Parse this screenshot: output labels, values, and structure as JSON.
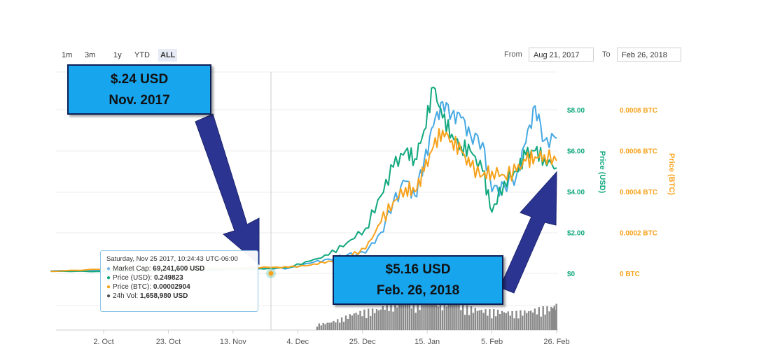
{
  "range_selector": {
    "buttons": [
      "1m",
      "3m",
      "1y",
      "YTD",
      "ALL"
    ],
    "active": "ALL"
  },
  "date_range": {
    "from_label": "From",
    "from_value": "Aug 21, 2017",
    "to_label": "To",
    "to_value": "Feb 26, 2018"
  },
  "annotations": {
    "start": {
      "line1": "$.24 USD",
      "line2": "Nov. 2017"
    },
    "end": {
      "line1": "$5.16 USD",
      "line2": "Feb. 26, 2018"
    }
  },
  "tooltip": {
    "title": "Saturday, Nov 25 2017, 10:24:43 UTC-06:00",
    "rows": [
      {
        "label": "Market Cap:",
        "value": "69,241,600 USD",
        "color": "#7cb5ec"
      },
      {
        "label": "Price (USD):",
        "value": "0.249823",
        "color": "#11a87e"
      },
      {
        "label": "Price (BTC):",
        "value": "0.00002904",
        "color": "#f7a21b"
      },
      {
        "label": "24h Vol:",
        "value": "1,658,980 USD",
        "color": "#555555"
      }
    ]
  },
  "colors": {
    "market_cap": "#46a9e3",
    "price_usd": "#11a87e",
    "price_btc": "#f7a21b",
    "volume": "#8a8a8a",
    "usd_axis": "#11a87e",
    "btc_axis": "#f7a21b",
    "callout_fill": "#17a5ee",
    "arrow": "#2b3591"
  },
  "chart_data": {
    "type": "line",
    "x_tick_labels": [
      "2. Oct",
      "23. Oct",
      "13. Nov",
      "4. Dec",
      "25. Dec",
      "15. Jan",
      "5. Feb",
      "26. Feb"
    ],
    "x_tick_dates": [
      "2017-10-02",
      "2017-10-23",
      "2017-11-13",
      "2017-12-04",
      "2017-12-25",
      "2018-01-15",
      "2018-02-05",
      "2018-02-26"
    ],
    "y_axes": {
      "usd": {
        "label": "Price (USD)",
        "ticks": [
          "$0",
          "$2.00",
          "$4.00",
          "$6.00",
          "$8.00"
        ],
        "range": [
          0,
          8
        ]
      },
      "btc": {
        "label": "Price (BTC)",
        "ticks": [
          "0 BTC",
          "0.0002 BTC",
          "0.0004 BTC",
          "0.0006 BTC",
          "0.0008 BTC"
        ],
        "range": [
          0,
          0.0008
        ]
      }
    },
    "series": [
      {
        "name": "Market Cap",
        "x": [
          "2017-09-15",
          "2017-10-01",
          "2017-10-15",
          "2017-11-01",
          "2017-11-15",
          "2017-11-25",
          "2017-12-01",
          "2017-12-08",
          "2017-12-14",
          "2017-12-20",
          "2017-12-26",
          "2017-12-31",
          "2018-01-04",
          "2018-01-08",
          "2018-01-11",
          "2018-01-14",
          "2018-01-17",
          "2018-01-20",
          "2018-01-23",
          "2018-01-26",
          "2018-01-29",
          "2018-02-02",
          "2018-02-05",
          "2018-02-09",
          "2018-02-13",
          "2018-02-16",
          "2018-02-19",
          "2018-02-22",
          "2018-02-26"
        ],
        "values": [
          0.12,
          0.14,
          0.15,
          0.2,
          0.22,
          0.25,
          0.25,
          0.5,
          0.7,
          0.9,
          1.0,
          2.0,
          3.5,
          4.5,
          3.8,
          5.5,
          7.2,
          8.4,
          7.8,
          7.6,
          6.8,
          6.4,
          4.0,
          4.3,
          4.8,
          6.4,
          8.2,
          6.5,
          6.6
        ]
      },
      {
        "name": "Price (USD)",
        "x": [
          "2017-09-15",
          "2017-10-01",
          "2017-10-15",
          "2017-11-01",
          "2017-11-15",
          "2017-11-25",
          "2017-12-01",
          "2017-12-08",
          "2017-12-14",
          "2017-12-20",
          "2017-12-26",
          "2017-12-31",
          "2018-01-04",
          "2018-01-08",
          "2018-01-11",
          "2018-01-14",
          "2018-01-17",
          "2018-01-20",
          "2018-01-23",
          "2018-01-26",
          "2018-01-29",
          "2018-02-02",
          "2018-02-05",
          "2018-02-09",
          "2018-02-13",
          "2018-02-16",
          "2018-02-19",
          "2018-02-22",
          "2018-02-26"
        ],
        "values": [
          0.1,
          0.1,
          0.12,
          0.15,
          0.2,
          0.25,
          0.3,
          0.6,
          0.9,
          1.5,
          2.2,
          3.8,
          5.2,
          6.0,
          5.6,
          7.0,
          9.1,
          7.6,
          6.8,
          6.2,
          6.0,
          5.0,
          3.0,
          4.5,
          5.0,
          5.8,
          6.0,
          5.6,
          5.16
        ]
      },
      {
        "name": "Price (BTC)",
        "x": [
          "2017-09-15",
          "2017-10-01",
          "2017-10-15",
          "2017-11-01",
          "2017-11-15",
          "2017-11-25",
          "2017-12-01",
          "2017-12-08",
          "2017-12-14",
          "2017-12-20",
          "2017-12-26",
          "2017-12-31",
          "2018-01-04",
          "2018-01-08",
          "2018-01-11",
          "2018-01-14",
          "2018-01-17",
          "2018-01-20",
          "2018-01-23",
          "2018-01-26",
          "2018-01-29",
          "2018-02-02",
          "2018-02-05",
          "2018-02-09",
          "2018-02-13",
          "2018-02-16",
          "2018-02-19",
          "2018-02-22",
          "2018-02-26"
        ],
        "values": [
          1e-05,
          2e-05,
          2e-05,
          2.5e-05,
          2.8e-05,
          2.9e-05,
          3e-05,
          4e-05,
          6e-05,
          8e-05,
          0.00012,
          0.00025,
          0.00035,
          0.00042,
          0.0004,
          0.0005,
          0.00062,
          0.0007,
          0.00065,
          0.0006,
          0.00052,
          0.00048,
          0.0005,
          0.00048,
          0.0005,
          0.00055,
          0.00057,
          0.00058,
          0.00055
        ]
      }
    ],
    "volume": {
      "x": [
        "2017-12-10",
        "2017-12-14",
        "2017-12-18",
        "2017-12-22",
        "2017-12-26",
        "2017-12-30",
        "2018-01-03",
        "2018-01-07",
        "2018-01-11",
        "2018-01-15",
        "2018-01-19",
        "2018-01-23",
        "2018-01-27",
        "2018-01-31",
        "2018-02-04",
        "2018-02-08",
        "2018-02-12",
        "2018-02-16",
        "2018-02-20",
        "2018-02-24",
        "2018-02-26"
      ],
      "relative_values": [
        0.15,
        0.2,
        0.3,
        0.45,
        0.5,
        0.55,
        0.75,
        0.8,
        0.7,
        0.9,
        0.85,
        0.8,
        0.6,
        0.55,
        0.5,
        0.5,
        0.45,
        0.5,
        0.55,
        0.6,
        0.65
      ]
    },
    "legend": "none",
    "grid": true
  }
}
